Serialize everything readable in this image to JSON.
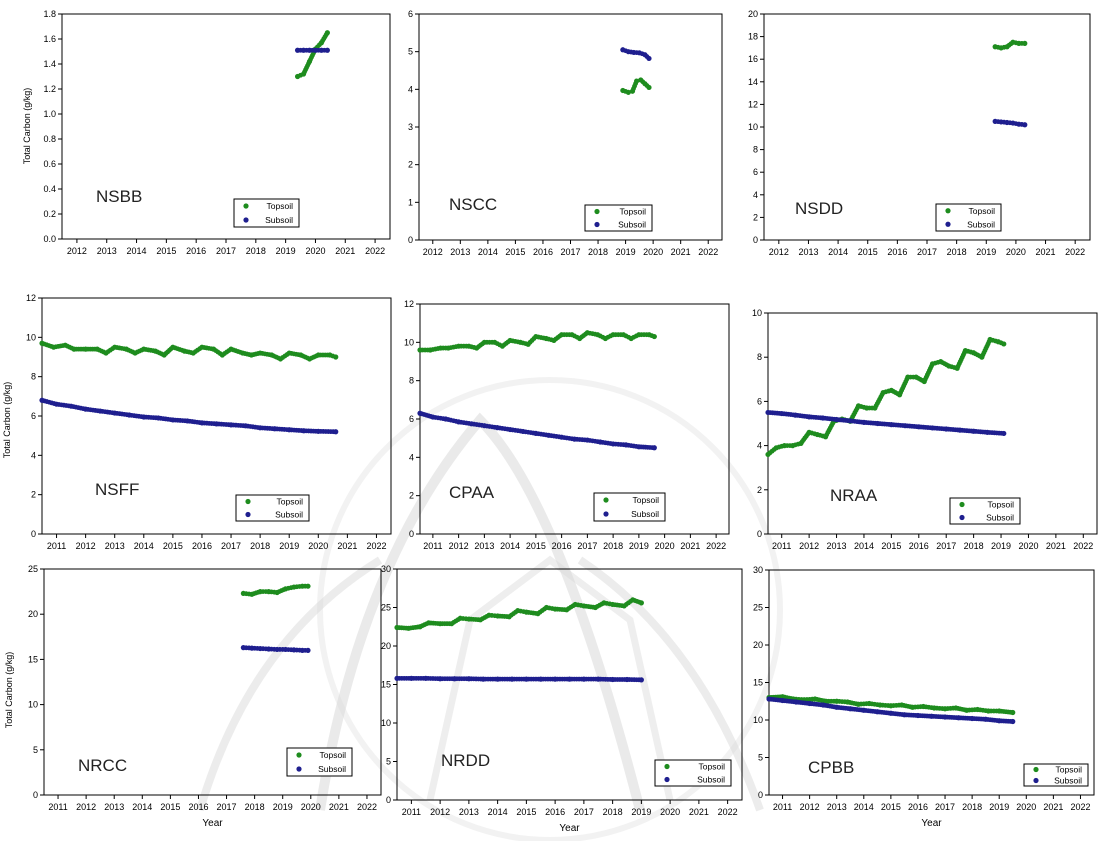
{
  "figure": {
    "colors": {
      "topsoil": "#1e8c1e",
      "subsoil": "#1f1f8f",
      "axis": "#000000",
      "frame": "#000000",
      "watermark": "#d9d9d9"
    }
  },
  "chart_data": [
    {
      "id": "NSBB",
      "type": "scatter",
      "title": "NSBB",
      "xlabel": "",
      "ylabel": "Total Carbon (g/kg)",
      "xlim": [
        2011.5,
        2022.5
      ],
      "ylim": [
        0,
        1.8
      ],
      "xticks": [
        "2012",
        "2013",
        "2014",
        "2015",
        "2016",
        "2017",
        "2018",
        "2019",
        "2020",
        "2021",
        "2022"
      ],
      "yticks": [
        "0.0",
        "0.2",
        "0.4",
        "0.6",
        "0.8",
        "1.0",
        "1.2",
        "1.4",
        "1.6",
        "1.8"
      ],
      "legend": [
        "Topsoil",
        "Subsoil"
      ],
      "legend_position": "bottom-right",
      "series": [
        {
          "name": "Topsoil",
          "x": [
            2019.4,
            2019.6,
            2019.8,
            2020.0,
            2020.2,
            2020.4
          ],
          "y": [
            1.3,
            1.32,
            1.42,
            1.52,
            1.57,
            1.65
          ]
        },
        {
          "name": "Subsoil",
          "x": [
            2019.4,
            2019.6,
            2019.8,
            2020.0,
            2020.2,
            2020.4
          ],
          "y": [
            1.51,
            1.51,
            1.51,
            1.51,
            1.51,
            1.51
          ]
        }
      ]
    },
    {
      "id": "NSCC",
      "type": "scatter",
      "title": "NSCC",
      "xlabel": "",
      "ylabel": "",
      "xlim": [
        2011.5,
        2022.5
      ],
      "ylim": [
        0,
        6
      ],
      "xticks": [
        "2012",
        "2013",
        "2014",
        "2015",
        "2016",
        "2017",
        "2018",
        "2019",
        "2020",
        "2021",
        "2022"
      ],
      "yticks": [
        "0",
        "1",
        "2",
        "3",
        "4",
        "5",
        "6"
      ],
      "legend": [
        "Topsoil",
        "Subsoil"
      ],
      "legend_position": "bottom-right",
      "series": [
        {
          "name": "Topsoil",
          "x": [
            2018.9,
            2019.1,
            2019.25,
            2019.4,
            2019.55,
            2019.7,
            2019.85
          ],
          "y": [
            3.97,
            3.92,
            3.95,
            4.22,
            4.25,
            4.15,
            4.05
          ]
        },
        {
          "name": "Subsoil",
          "x": [
            2018.9,
            2019.1,
            2019.3,
            2019.5,
            2019.7,
            2019.85
          ],
          "y": [
            5.05,
            5.0,
            4.98,
            4.97,
            4.92,
            4.82
          ]
        }
      ]
    },
    {
      "id": "NSDD",
      "type": "scatter",
      "title": "NSDD",
      "xlabel": "",
      "ylabel": "",
      "xlim": [
        2011.5,
        2022.5
      ],
      "ylim": [
        0,
        20
      ],
      "xticks": [
        "2012",
        "2013",
        "2014",
        "2015",
        "2016",
        "2017",
        "2018",
        "2019",
        "2020",
        "2021",
        "2022"
      ],
      "yticks": [
        "0",
        "2",
        "4",
        "6",
        "8",
        "10",
        "12",
        "14",
        "16",
        "18",
        "20"
      ],
      "legend": [
        "Topsoil",
        "Subsoil"
      ],
      "legend_position": "bottom-right",
      "series": [
        {
          "name": "Topsoil",
          "x": [
            2019.3,
            2019.5,
            2019.7,
            2019.9,
            2020.1,
            2020.3
          ],
          "y": [
            17.1,
            17.0,
            17.1,
            17.5,
            17.4,
            17.4
          ]
        },
        {
          "name": "Subsoil",
          "x": [
            2019.3,
            2019.5,
            2019.7,
            2019.9,
            2020.1,
            2020.3
          ],
          "y": [
            10.5,
            10.45,
            10.4,
            10.35,
            10.25,
            10.2
          ]
        }
      ]
    },
    {
      "id": "NSFF",
      "type": "scatter",
      "title": "NSFF",
      "xlabel": "",
      "ylabel": "Total Carbon (g/kg)",
      "xlim": [
        2010.5,
        2022.5
      ],
      "ylim": [
        0,
        12
      ],
      "xticks": [
        "2011",
        "2012",
        "2013",
        "2014",
        "2015",
        "2016",
        "2017",
        "2018",
        "2019",
        "2020",
        "2021",
        "2022"
      ],
      "yticks": [
        "0",
        "2",
        "4",
        "6",
        "8",
        "10",
        "12"
      ],
      "legend": [
        "Topsoil",
        "Subsoil"
      ],
      "legend_position": "bottom-right",
      "series": [
        {
          "name": "Topsoil",
          "x": [
            2010.5,
            2010.9,
            2011.3,
            2011.6,
            2012.0,
            2012.4,
            2012.7,
            2013.0,
            2013.4,
            2013.7,
            2014.0,
            2014.4,
            2014.7,
            2015.0,
            2015.4,
            2015.7,
            2016.0,
            2016.4,
            2016.7,
            2017.0,
            2017.4,
            2017.7,
            2018.0,
            2018.4,
            2018.7,
            2019.0,
            2019.4,
            2019.7,
            2020.0,
            2020.4,
            2020.6
          ],
          "y": [
            9.7,
            9.5,
            9.6,
            9.4,
            9.4,
            9.4,
            9.2,
            9.5,
            9.4,
            9.2,
            9.4,
            9.3,
            9.1,
            9.5,
            9.3,
            9.2,
            9.5,
            9.4,
            9.1,
            9.4,
            9.2,
            9.1,
            9.2,
            9.1,
            8.9,
            9.2,
            9.1,
            8.9,
            9.1,
            9.1,
            9.0
          ]
        },
        {
          "name": "Subsoil",
          "x": [
            2010.5,
            2011.0,
            2011.5,
            2012.0,
            2012.5,
            2013.0,
            2013.5,
            2014.0,
            2014.5,
            2015.0,
            2015.5,
            2016.0,
            2016.5,
            2017.0,
            2017.5,
            2018.0,
            2018.5,
            2019.0,
            2019.5,
            2020.0,
            2020.6
          ],
          "y": [
            6.8,
            6.6,
            6.5,
            6.35,
            6.25,
            6.15,
            6.05,
            5.95,
            5.9,
            5.8,
            5.75,
            5.65,
            5.6,
            5.55,
            5.5,
            5.4,
            5.35,
            5.3,
            5.25,
            5.22,
            5.2
          ]
        }
      ]
    },
    {
      "id": "CPAA",
      "type": "scatter",
      "title": "CPAA",
      "xlabel": "",
      "ylabel": "",
      "xlim": [
        2010.5,
        2022.5
      ],
      "ylim": [
        0,
        12
      ],
      "xticks": [
        "2011",
        "2012",
        "2013",
        "2014",
        "2015",
        "2016",
        "2017",
        "2018",
        "2019",
        "2020",
        "2021",
        "2022"
      ],
      "yticks": [
        "0",
        "2",
        "4",
        "6",
        "8",
        "10",
        "12"
      ],
      "legend": [
        "Topsoil",
        "Subsoil"
      ],
      "legend_position": "bottom-right",
      "series": [
        {
          "name": "Topsoil",
          "x": [
            2010.5,
            2010.9,
            2011.3,
            2011.6,
            2012.0,
            2012.4,
            2012.7,
            2013.0,
            2013.4,
            2013.7,
            2014.0,
            2014.4,
            2014.7,
            2015.0,
            2015.4,
            2015.7,
            2016.0,
            2016.4,
            2016.7,
            2017.0,
            2017.4,
            2017.7,
            2018.0,
            2018.4,
            2018.7,
            2019.0,
            2019.4,
            2019.6
          ],
          "y": [
            9.6,
            9.6,
            9.7,
            9.7,
            9.8,
            9.8,
            9.7,
            10.0,
            10.0,
            9.8,
            10.1,
            10.0,
            9.9,
            10.3,
            10.2,
            10.1,
            10.4,
            10.4,
            10.2,
            10.5,
            10.4,
            10.2,
            10.4,
            10.4,
            10.2,
            10.4,
            10.4,
            10.3
          ]
        },
        {
          "name": "Subsoil",
          "x": [
            2010.5,
            2011.0,
            2011.5,
            2012.0,
            2012.5,
            2013.0,
            2013.5,
            2014.0,
            2014.5,
            2015.0,
            2015.5,
            2016.0,
            2016.5,
            2017.0,
            2017.5,
            2018.0,
            2018.5,
            2019.0,
            2019.6
          ],
          "y": [
            6.3,
            6.1,
            6.0,
            5.85,
            5.75,
            5.65,
            5.55,
            5.45,
            5.35,
            5.25,
            5.15,
            5.05,
            4.95,
            4.9,
            4.8,
            4.7,
            4.65,
            4.55,
            4.5
          ]
        }
      ]
    },
    {
      "id": "NRAA",
      "type": "scatter",
      "title": "NRAA",
      "xlabel": "",
      "ylabel": "",
      "xlim": [
        2010.5,
        2022.5
      ],
      "ylim": [
        0,
        10
      ],
      "xticks": [
        "2011",
        "2012",
        "2013",
        "2014",
        "2015",
        "2016",
        "2017",
        "2018",
        "2019",
        "2020",
        "2021",
        "2022"
      ],
      "yticks": [
        "0",
        "2",
        "4",
        "6",
        "8",
        "10"
      ],
      "legend": [
        "Topsoil",
        "Subsoil"
      ],
      "legend_position": "bottom-right",
      "series": [
        {
          "name": "Topsoil",
          "x": [
            2010.5,
            2010.8,
            2011.1,
            2011.4,
            2011.7,
            2012.0,
            2012.3,
            2012.6,
            2012.9,
            2013.2,
            2013.5,
            2013.8,
            2014.1,
            2014.4,
            2014.7,
            2015.0,
            2015.3,
            2015.6,
            2015.9,
            2016.2,
            2016.5,
            2016.8,
            2017.1,
            2017.4,
            2017.7,
            2018.0,
            2018.3,
            2018.6,
            2018.9,
            2019.1
          ],
          "y": [
            3.6,
            3.9,
            4.0,
            4.0,
            4.1,
            4.6,
            4.5,
            4.4,
            5.1,
            5.2,
            5.1,
            5.8,
            5.7,
            5.7,
            6.4,
            6.5,
            6.3,
            7.1,
            7.1,
            6.9,
            7.7,
            7.8,
            7.6,
            7.5,
            8.3,
            8.2,
            8.0,
            8.8,
            8.7,
            8.6
          ]
        },
        {
          "name": "Subsoil",
          "x": [
            2010.5,
            2011.0,
            2011.5,
            2012.0,
            2012.5,
            2013.0,
            2013.5,
            2014.0,
            2014.5,
            2015.0,
            2015.5,
            2016.0,
            2016.5,
            2017.0,
            2017.5,
            2018.0,
            2018.5,
            2019.1
          ],
          "y": [
            5.5,
            5.45,
            5.38,
            5.3,
            5.25,
            5.18,
            5.12,
            5.05,
            5.0,
            4.95,
            4.9,
            4.85,
            4.8,
            4.75,
            4.7,
            4.65,
            4.6,
            4.55
          ]
        }
      ]
    },
    {
      "id": "NRCC",
      "type": "scatter",
      "title": "NRCC",
      "xlabel": "Year",
      "ylabel": "Total Carbon (g/kg)",
      "xlim": [
        2010.5,
        2022.5
      ],
      "ylim": [
        0,
        25
      ],
      "xticks": [
        "2011",
        "2012",
        "2013",
        "2014",
        "2015",
        "2016",
        "2017",
        "2018",
        "2019",
        "2020",
        "2021",
        "2022"
      ],
      "yticks": [
        "0",
        "5",
        "10",
        "15",
        "20",
        "25"
      ],
      "legend": [
        "Topsoil",
        "Subsoil"
      ],
      "legend_position": "bottom-right",
      "series": [
        {
          "name": "Topsoil",
          "x": [
            2017.6,
            2017.9,
            2018.2,
            2018.5,
            2018.8,
            2019.1,
            2019.4,
            2019.7,
            2019.9
          ],
          "y": [
            22.3,
            22.2,
            22.5,
            22.5,
            22.4,
            22.8,
            23.0,
            23.1,
            23.1
          ]
        },
        {
          "name": "Subsoil",
          "x": [
            2017.6,
            2017.9,
            2018.2,
            2018.5,
            2018.8,
            2019.1,
            2019.4,
            2019.7,
            2019.9
          ],
          "y": [
            16.3,
            16.25,
            16.2,
            16.15,
            16.1,
            16.1,
            16.05,
            16.0,
            16.0
          ]
        }
      ]
    },
    {
      "id": "NRDD",
      "type": "scatter",
      "title": "NRDD",
      "xlabel": "Year",
      "ylabel": "",
      "xlim": [
        2010.5,
        2022.5
      ],
      "ylim": [
        0,
        30
      ],
      "xticks": [
        "2011",
        "2012",
        "2013",
        "2014",
        "2015",
        "2016",
        "2017",
        "2018",
        "2019",
        "2020",
        "2021",
        "2022"
      ],
      "yticks": [
        "0",
        "5",
        "10",
        "15",
        "20",
        "25",
        "30"
      ],
      "legend": [
        "Topsoil",
        "Subsoil"
      ],
      "legend_position": "bottom-right",
      "series": [
        {
          "name": "Topsoil",
          "x": [
            2010.5,
            2010.9,
            2011.3,
            2011.6,
            2012.0,
            2012.4,
            2012.7,
            2013.0,
            2013.4,
            2013.7,
            2014.0,
            2014.4,
            2014.7,
            2015.0,
            2015.4,
            2015.7,
            2016.0,
            2016.4,
            2016.7,
            2017.0,
            2017.4,
            2017.7,
            2018.0,
            2018.4,
            2018.7,
            2019.0
          ],
          "y": [
            22.4,
            22.3,
            22.5,
            23.0,
            22.9,
            22.9,
            23.6,
            23.5,
            23.4,
            24.0,
            23.9,
            23.8,
            24.6,
            24.4,
            24.2,
            25.0,
            24.8,
            24.7,
            25.4,
            25.2,
            25.0,
            25.6,
            25.4,
            25.2,
            26.0,
            25.6
          ]
        },
        {
          "name": "Subsoil",
          "x": [
            2010.5,
            2011.0,
            2011.5,
            2012.0,
            2012.5,
            2013.0,
            2013.5,
            2014.0,
            2014.5,
            2015.0,
            2015.5,
            2016.0,
            2016.5,
            2017.0,
            2017.5,
            2018.0,
            2018.5,
            2019.0
          ],
          "y": [
            15.8,
            15.8,
            15.8,
            15.75,
            15.75,
            15.75,
            15.7,
            15.7,
            15.7,
            15.7,
            15.7,
            15.7,
            15.7,
            15.7,
            15.7,
            15.65,
            15.65,
            15.6
          ]
        }
      ]
    },
    {
      "id": "CPBB",
      "type": "scatter",
      "title": "CPBB",
      "xlabel": "Year",
      "ylabel": "",
      "xlim": [
        2010.5,
        2022.5
      ],
      "ylim": [
        0,
        30
      ],
      "xticks": [
        "2011",
        "2012",
        "2013",
        "2014",
        "2015",
        "2016",
        "2017",
        "2018",
        "2019",
        "2020",
        "2021",
        "2022"
      ],
      "yticks": [
        "0",
        "5",
        "10",
        "15",
        "20",
        "25",
        "30"
      ],
      "legend": [
        "Topsoil",
        "Subsoil"
      ],
      "legend_position": "bottom-right",
      "series": [
        {
          "name": "Topsoil",
          "x": [
            2010.5,
            2011.0,
            2011.4,
            2011.8,
            2012.2,
            2012.6,
            2013.0,
            2013.4,
            2013.8,
            2014.2,
            2014.6,
            2015.0,
            2015.4,
            2015.8,
            2016.2,
            2016.6,
            2017.0,
            2017.4,
            2017.8,
            2018.2,
            2018.6,
            2019.0,
            2019.5
          ],
          "y": [
            13.0,
            13.1,
            12.8,
            12.7,
            12.8,
            12.5,
            12.5,
            12.4,
            12.1,
            12.2,
            12.0,
            11.9,
            12.0,
            11.7,
            11.8,
            11.6,
            11.5,
            11.6,
            11.3,
            11.4,
            11.2,
            11.2,
            11.0
          ]
        },
        {
          "name": "Subsoil",
          "x": [
            2010.5,
            2011.0,
            2011.5,
            2012.0,
            2012.5,
            2013.0,
            2013.5,
            2014.0,
            2014.5,
            2015.0,
            2015.5,
            2016.0,
            2016.5,
            2017.0,
            2017.5,
            2018.0,
            2018.5,
            2019.0,
            2019.5
          ],
          "y": [
            12.8,
            12.6,
            12.4,
            12.2,
            12.0,
            11.7,
            11.5,
            11.3,
            11.1,
            10.9,
            10.7,
            10.6,
            10.5,
            10.4,
            10.3,
            10.2,
            10.1,
            9.9,
            9.8
          ]
        }
      ]
    }
  ]
}
